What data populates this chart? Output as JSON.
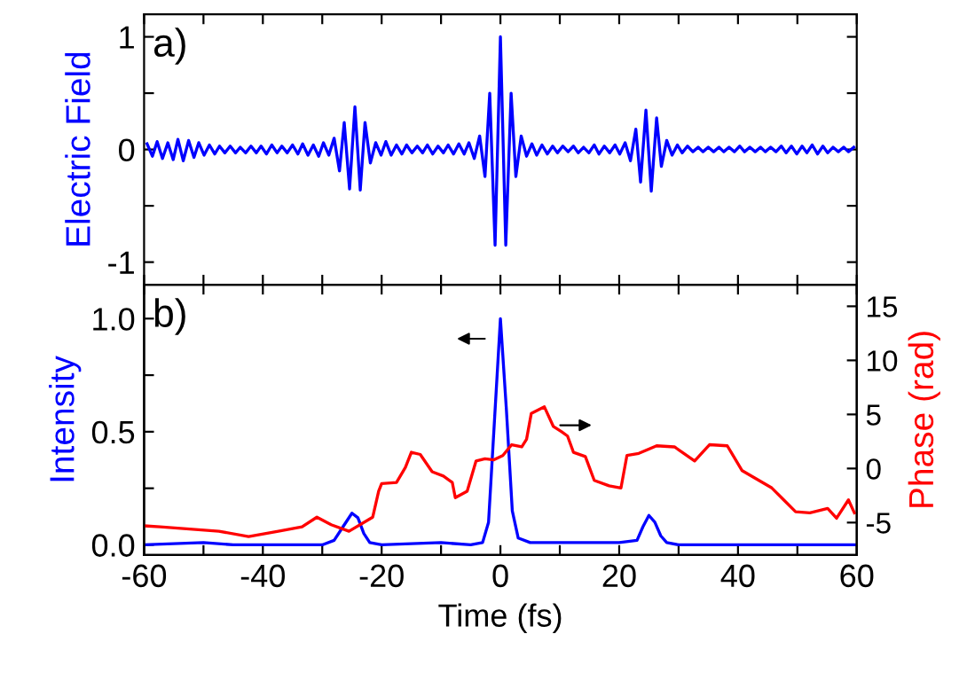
{
  "chart_data": [
    {
      "type": "line",
      "ylabel": "Electric Field",
      "annotations": [
        "a)"
      ],
      "tick_labels": "y",
      "grid": false,
      "legend": false,
      "xlim": [
        -60,
        60
      ],
      "xticks": [
        -60,
        {
          "value": -50,
          "label": null
        },
        -40,
        {
          "value": -30,
          "label": null
        },
        -20,
        {
          "value": -10,
          "label": null
        },
        0,
        {
          "value": 10,
          "label": null
        },
        20,
        {
          "value": 30,
          "label": null
        },
        40,
        {
          "value": 50,
          "label": null
        },
        60
      ],
      "ylim": [
        -1.2,
        1.2
      ],
      "yticks": [
        -1,
        {
          "value": -0.5,
          "label": null
        },
        0,
        {
          "value": 0.5,
          "label": null
        },
        1
      ],
      "series": [
        {
          "color": "#0000ff",
          "x": [
            -59.5,
            -58.6,
            -57.8,
            -56.9,
            -56,
            -55.1,
            -54.3,
            -53.4,
            -52.5,
            -51.6,
            -50.8,
            -49.9,
            -49,
            -48.1,
            -47.3,
            -46.4,
            -45.5,
            -44.6,
            -43.8,
            -42.9,
            -42,
            -41.1,
            -40.3,
            -39.4,
            -38.5,
            -37.6,
            -36.8,
            -35.9,
            -35,
            -34.1,
            -33.3,
            -32.4,
            -31.5,
            -30.6,
            -29.8,
            -28.9,
            -28,
            -27.1,
            -26.3,
            -25.4,
            -24.5,
            -23.6,
            -22.8,
            -21.9,
            -21,
            -20.1,
            -19.3,
            -18.4,
            -17.5,
            -16.6,
            -15.8,
            -14.9,
            -14,
            -13.1,
            -12.3,
            -11.4,
            -10.5,
            -9.6,
            -8.8,
            -7.9,
            -7,
            -6.1,
            -5.3,
            -4.4,
            -3.5,
            -2.6,
            -1.8,
            -0.9,
            0,
            0.9,
            1.8,
            2.6,
            3.5,
            4.4,
            5.3,
            6.1,
            7,
            7.9,
            8.8,
            9.6,
            10.5,
            11.4,
            12.3,
            13.1,
            14,
            14.9,
            15.8,
            16.6,
            17.5,
            18.4,
            19.3,
            20.1,
            21,
            21.9,
            22.8,
            23.6,
            24.5,
            25.4,
            26.3,
            27.1,
            28,
            28.9,
            29.8,
            30.6,
            31.5,
            32.4,
            33.3,
            34.1,
            35,
            35.9,
            36.8,
            37.6,
            38.5,
            39.4,
            40.3,
            41.1,
            42,
            42.9,
            43.8,
            44.6,
            45.5,
            46.4,
            47.3,
            48.1,
            49,
            49.9,
            50.8,
            51.6,
            52.5,
            53.4,
            54.3,
            55.1,
            56,
            56.9,
            57.8,
            58.6,
            59.5
          ],
          "values": [
            0.05,
            -0.06,
            0.07,
            -0.08,
            0.06,
            -0.09,
            0.09,
            -0.1,
            0.08,
            -0.07,
            0.06,
            -0.05,
            0.04,
            -0.04,
            0.03,
            -0.03,
            0.03,
            -0.03,
            0.02,
            -0.03,
            0.03,
            -0.03,
            0.03,
            -0.04,
            0.04,
            -0.03,
            0.03,
            -0.03,
            0.04,
            -0.04,
            0.05,
            -0.05,
            0.04,
            -0.06,
            0.06,
            -0.05,
            0.1,
            -0.19,
            0.24,
            -0.35,
            0.38,
            -0.36,
            0.24,
            -0.12,
            0.06,
            -0.05,
            0.07,
            -0.05,
            0.04,
            -0.04,
            0.04,
            -0.03,
            0.03,
            -0.03,
            0.04,
            -0.04,
            0.03,
            -0.03,
            0.04,
            -0.04,
            0.05,
            -0.04,
            0.06,
            -0.08,
            0.12,
            -0.24,
            0.5,
            -0.85,
            1.0,
            -0.85,
            0.5,
            -0.24,
            0.12,
            -0.06,
            0.05,
            -0.05,
            0.04,
            -0.04,
            0.03,
            -0.03,
            0.03,
            -0.02,
            0.03,
            -0.03,
            0.02,
            -0.03,
            0.04,
            -0.04,
            0.03,
            -0.03,
            0.04,
            -0.04,
            0.06,
            -0.1,
            0.18,
            -0.29,
            0.35,
            -0.37,
            0.28,
            -0.15,
            0.08,
            -0.05,
            0.04,
            -0.03,
            0.03,
            -0.02,
            0.02,
            -0.02,
            0.02,
            -0.02,
            0.02,
            -0.02,
            0.02,
            -0.02,
            0.03,
            -0.02,
            0.02,
            -0.02,
            0.02,
            -0.02,
            0.02,
            -0.02,
            0.03,
            -0.03,
            0.03,
            -0.04,
            0.03,
            -0.03,
            0.04,
            -0.04,
            0.03,
            -0.03,
            0.02,
            -0.02,
            0.02,
            -0.02,
            0.02
          ]
        }
      ]
    },
    {
      "type": "line",
      "xlabel": "Time (fs)",
      "ylabel": "Intensity",
      "y2label": "Phase (rad)",
      "annotations": [
        "b)"
      ],
      "grid": false,
      "legend": false,
      "xlim": [
        -60,
        60
      ],
      "xticks": [
        -60,
        {
          "value": -50,
          "label": null
        },
        -40,
        {
          "value": -30,
          "label": null
        },
        -20,
        {
          "value": -10,
          "label": null
        },
        0,
        {
          "value": 10,
          "label": null
        },
        20,
        {
          "value": 30,
          "label": null
        },
        40,
        {
          "value": 50,
          "label": null
        },
        60
      ],
      "ylim": [
        -0.045,
        1.15
      ],
      "yticks": [
        {
          "value": 0,
          "label": "0.0"
        },
        {
          "value": 0.25,
          "label": null
        },
        0.5,
        {
          "value": 0.75,
          "label": null
        },
        {
          "value": 1,
          "label": "1.0"
        }
      ],
      "y2lim": [
        -8,
        17
      ],
      "y2ticks": [
        -5,
        0,
        5,
        10,
        15
      ],
      "series": [
        {
          "color": "#0000ff",
          "axis": "y",
          "x": [
            -60,
            -50,
            -45,
            -30,
            -28,
            -26.5,
            -25,
            -24,
            -23,
            -22,
            -20,
            -10,
            -5,
            -3,
            -2,
            -1,
            0,
            1,
            2,
            3,
            5,
            10,
            20,
            23,
            24,
            25,
            26,
            27,
            28,
            30,
            60
          ],
          "values": [
            0,
            0.01,
            0,
            0,
            0.02,
            0.08,
            0.14,
            0.12,
            0.05,
            0.01,
            0,
            0.01,
            0,
            0.01,
            0.1,
            0.55,
            1.0,
            0.6,
            0.15,
            0.03,
            0.01,
            0.01,
            0.01,
            0.02,
            0.08,
            0.13,
            0.1,
            0.04,
            0.01,
            0,
            0
          ]
        },
        {
          "color": "#ff0000",
          "axis": "y2",
          "x": [
            -60,
            -57.3,
            -47.4,
            -42.4,
            -37.4,
            -33.4,
            -30.9,
            -28.5,
            -25.5,
            -21.5,
            -20.5,
            -20,
            -17.5,
            -16,
            -15,
            -13.5,
            -11.5,
            -9.6,
            -8.1,
            -7.6,
            -5.6,
            -4.1,
            -2.6,
            -1.1,
            0.4,
            1.9,
            3.6,
            4.4,
            5.2,
            7.4,
            8.9,
            10.3,
            11.3,
            12.3,
            14.3,
            15.8,
            18.3,
            20.3,
            21.3,
            23.3,
            26.3,
            29.3,
            32.7,
            35.2,
            38.2,
            40.7,
            43.2,
            45.7,
            47.7,
            49.7,
            52.1,
            55.1,
            56.6,
            58.6,
            59.6
          ],
          "values": [
            -5.3,
            -5.4,
            -5.8,
            -6.3,
            -5.8,
            -5.4,
            -4.5,
            -5.2,
            -5.8,
            -4.5,
            -2.1,
            -1.4,
            -1.3,
            0.1,
            1.5,
            1.3,
            -0.3,
            -0.7,
            -1.3,
            -2.7,
            -2.1,
            0.7,
            0.9,
            0.8,
            1.2,
            2.2,
            2.0,
            2.7,
            5.1,
            5.7,
            3.9,
            3.4,
            3.0,
            1.5,
            1.1,
            -1.1,
            -1.6,
            -1.8,
            1.2,
            1.4,
            2.1,
            2.0,
            0.7,
            2.2,
            2.1,
            -0.2,
            -1.0,
            -1.8,
            -2.9,
            -4.0,
            -4.1,
            -3.7,
            -4.6,
            -2.9,
            -4.1
          ]
        }
      ]
    }
  ]
}
